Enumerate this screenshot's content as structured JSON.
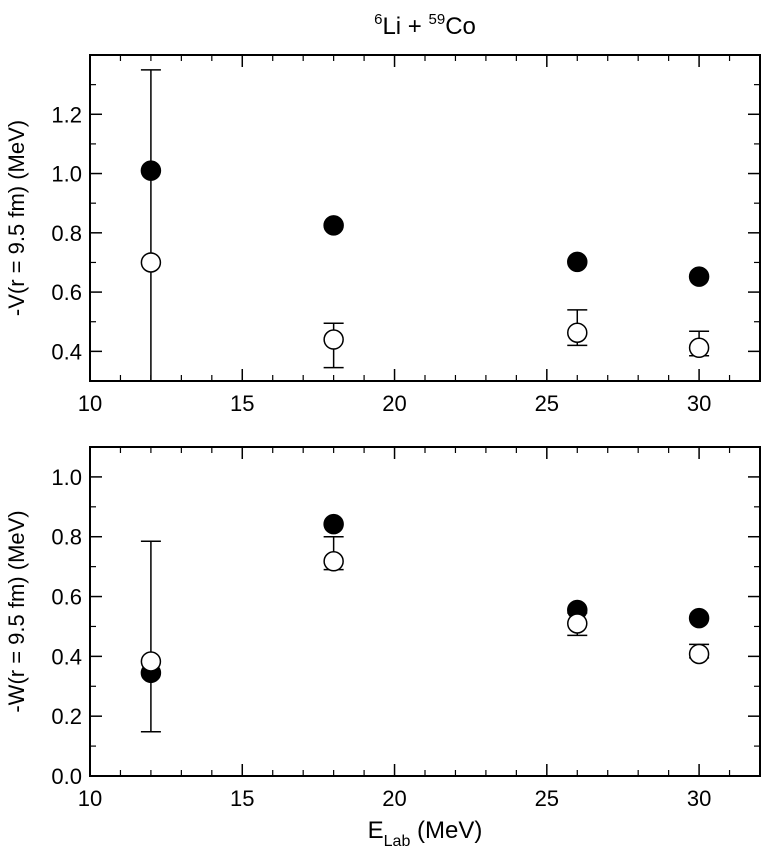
{
  "figure": {
    "title_mass_a": "6",
    "title_element_a": "Li",
    "title_plus": " + ",
    "title_mass_b": "59",
    "title_element_b": "Co",
    "xlabel_main": "E",
    "xlabel_sub": "Lab",
    "xlabel_unit": " (MeV)"
  },
  "chart_data": [
    {
      "type": "scatter",
      "panel": "top",
      "xlabel": "",
      "ylabel": "-V(r = 9.5 fm) (MeV)",
      "xlim": [
        10,
        32
      ],
      "ylim": [
        0.3,
        1.4
      ],
      "xticks": [
        10,
        15,
        20,
        25,
        30
      ],
      "xtick_labels": [
        "10",
        "15",
        "20",
        "25",
        "30"
      ],
      "yticks": [
        0.4,
        0.6,
        0.8,
        1.0,
        1.2
      ],
      "ytick_labels": [
        "0.4",
        "0.6",
        "0.8",
        "1.0",
        "1.2"
      ],
      "series": [
        {
          "marker": "filled-circle",
          "color": "#000000",
          "x": [
            12,
            18,
            26,
            30
          ],
          "y": [
            1.01,
            0.825,
            0.702,
            0.652
          ]
        },
        {
          "marker": "open-circle",
          "color": "#000000",
          "x": [
            12,
            18,
            26,
            30
          ],
          "y": [
            0.7,
            0.44,
            0.463,
            0.412
          ],
          "error_low": [
            0.25,
            0.345,
            0.42,
            0.385
          ],
          "error_high": [
            1.35,
            0.495,
            0.54,
            0.468
          ]
        }
      ]
    },
    {
      "type": "scatter",
      "panel": "bottom",
      "xlabel": "E_Lab (MeV)",
      "ylabel": "-W(r = 9.5 fm) (MeV)",
      "xlim": [
        10,
        32
      ],
      "ylim": [
        0.0,
        1.1
      ],
      "xticks": [
        10,
        15,
        20,
        25,
        30
      ],
      "xtick_labels": [
        "10",
        "15",
        "20",
        "25",
        "30"
      ],
      "yticks": [
        0.0,
        0.2,
        0.4,
        0.6,
        0.8,
        1.0
      ],
      "ytick_labels": [
        "0.0",
        "0.2",
        "0.4",
        "0.6",
        "0.8",
        "1.0"
      ],
      "series": [
        {
          "marker": "filled-circle",
          "color": "#000000",
          "x": [
            12,
            18,
            26,
            30
          ],
          "y": [
            0.345,
            0.842,
            0.555,
            0.528
          ]
        },
        {
          "marker": "open-circle",
          "color": "#000000",
          "x": [
            12,
            18,
            26,
            30
          ],
          "y": [
            0.383,
            0.718,
            0.51,
            0.408
          ],
          "error_low": [
            0.148,
            0.69,
            0.47,
            0.395
          ],
          "error_high": [
            0.785,
            0.8,
            0.545,
            0.44
          ]
        }
      ]
    }
  ]
}
